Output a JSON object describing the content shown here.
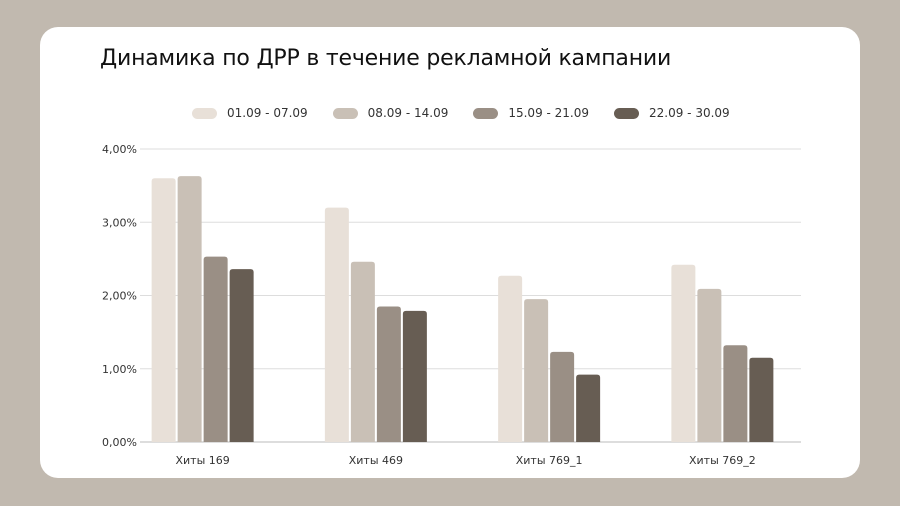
{
  "chart_data": {
    "type": "bar",
    "title": "Динамика по ДРР в течение рекламной кампании",
    "categories": [
      "Хиты 169",
      "Хиты 469",
      "Хиты 769_1",
      "Хиты 769_2"
    ],
    "series": [
      {
        "name": "01.09 - 07.09",
        "color": "#e8e0d8",
        "values": [
          3.6,
          3.2,
          2.27,
          2.42
        ]
      },
      {
        "name": "08.09 - 14.09",
        "color": "#c9c0b6",
        "values": [
          3.63,
          2.46,
          1.95,
          2.09
        ]
      },
      {
        "name": "15.09 - 21.09",
        "color": "#9a8f85",
        "values": [
          2.53,
          1.85,
          1.23,
          1.32
        ]
      },
      {
        "name": "22.09 - 30.09",
        "color": "#675d53",
        "values": [
          2.36,
          1.79,
          0.92,
          1.15
        ]
      }
    ],
    "yticks": [
      "0,00%",
      "1,00%",
      "2,00%",
      "3,00%",
      "4,00%"
    ],
    "ylim": [
      0,
      4
    ],
    "xlabel": "",
    "ylabel": "",
    "grid": true,
    "legend": "top"
  }
}
